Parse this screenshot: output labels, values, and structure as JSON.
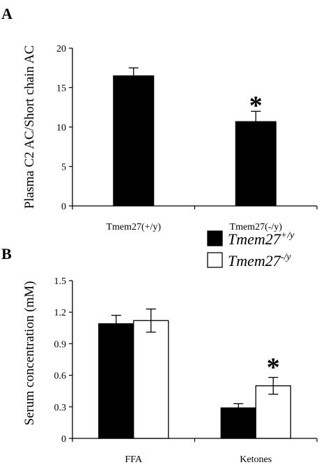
{
  "figure": {
    "panel_a_label": "A",
    "panel_b_label": "B"
  },
  "chart_data": [
    {
      "type": "bar",
      "panel": "A",
      "ylabel": "Plasma C2 AC/Short chain AC",
      "xlabel": "",
      "categories": [
        "Tmem27(+/y)",
        "Tmem27(-/y)"
      ],
      "values": [
        16.5,
        10.7
      ],
      "errors": [
        1.0,
        1.3
      ],
      "ylim": [
        0,
        20
      ],
      "yticks": [
        "0",
        "5",
        "10",
        "15",
        "20"
      ],
      "significance": [
        "",
        "*"
      ],
      "bar_color": "#000000",
      "grid": false
    },
    {
      "type": "bar",
      "panel": "B",
      "ylabel": "Serum concentration (mM)",
      "xlabel": "",
      "categories": [
        "FFA",
        "Ketones"
      ],
      "series": [
        {
          "name": "Tmem27+/y",
          "values": [
            1.09,
            0.29
          ],
          "errors": [
            0.08,
            0.04
          ],
          "color": "#000000"
        },
        {
          "name": "Tmem27-/y",
          "values": [
            1.12,
            0.5
          ],
          "errors": [
            0.11,
            0.08
          ],
          "color": "#ffffff"
        }
      ],
      "ylim": [
        0,
        1.5
      ],
      "yticks": [
        "0",
        "0.3",
        "0.6",
        "0.9",
        "1.2",
        "1.5"
      ],
      "significance": [
        "",
        "*"
      ],
      "legend": {
        "placement": "top-right",
        "entries": [
          {
            "base": "Tmem27",
            "sup": "+/y"
          },
          {
            "base": "Tmem27",
            "sup": "-/y"
          }
        ]
      },
      "grid": false
    }
  ]
}
